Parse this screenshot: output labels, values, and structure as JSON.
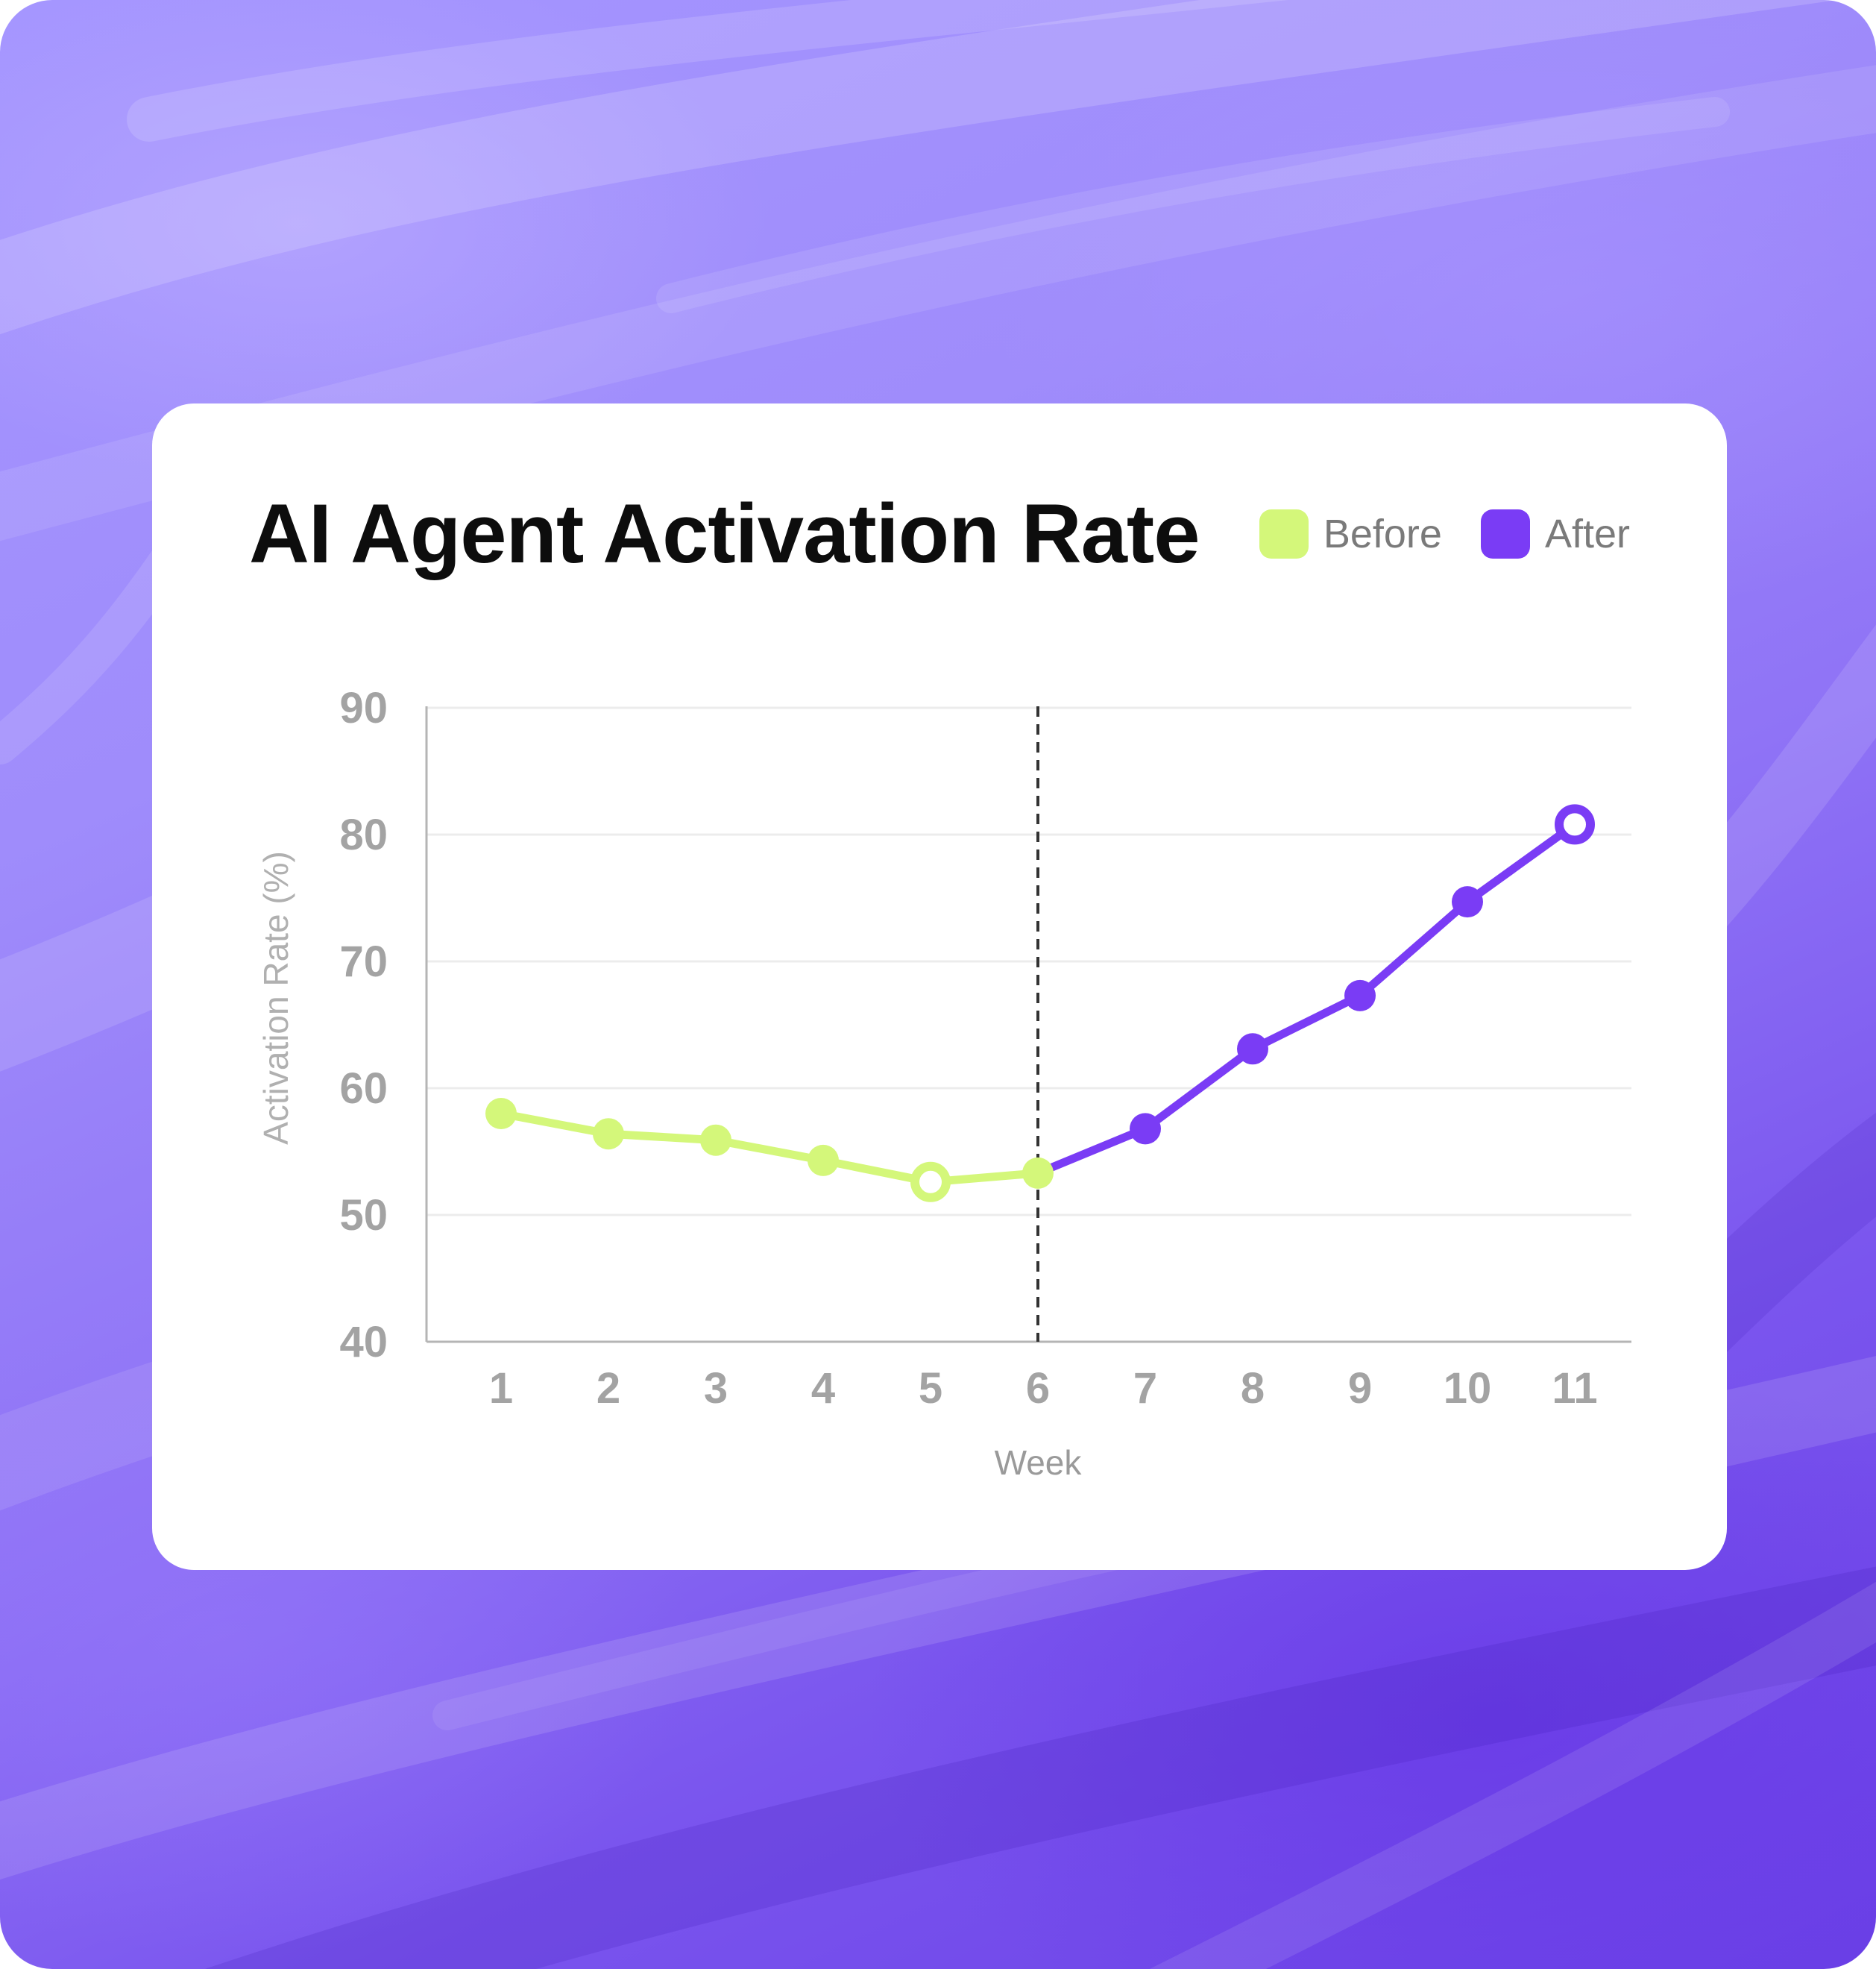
{
  "card": {
    "title": "AI Agent Activation Rate"
  },
  "legend": [
    {
      "label": "Before",
      "color": "#d4f77a"
    },
    {
      "label": "After",
      "color": "#7a3cf5"
    }
  ],
  "chart_data": {
    "type": "line",
    "title": "AI Agent Activation Rate",
    "xlabel": "Week",
    "ylabel": "Activation Rate (%)",
    "x": [
      1,
      2,
      3,
      4,
      5,
      6,
      7,
      8,
      9,
      10,
      11
    ],
    "ylim": [
      40,
      90
    ],
    "yticks": [
      40,
      50,
      60,
      70,
      80,
      90
    ],
    "grid": true,
    "legend_position": "top-right",
    "divider_x": 6,
    "series": [
      {
        "name": "Before",
        "color": "#d4f77a",
        "x": [
          1,
          2,
          3,
          4,
          5,
          6
        ],
        "values": [
          58.0,
          56.4,
          55.9,
          54.3,
          52.6,
          53.3
        ],
        "highlight_x": 5
      },
      {
        "name": "After",
        "color": "#7a3cf5",
        "x": [
          6,
          7,
          8,
          9,
          10,
          11
        ],
        "values": [
          53.3,
          56.8,
          63.1,
          67.3,
          74.7,
          80.8
        ],
        "highlight_x": 11
      }
    ]
  }
}
